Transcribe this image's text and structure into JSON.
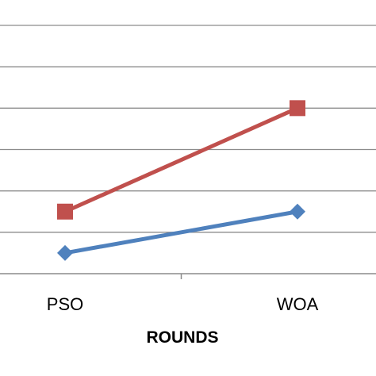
{
  "chart_data": {
    "type": "line",
    "categories": [
      "PSO",
      "WOA"
    ],
    "xlabel": "ROUNDS",
    "ylabel": "",
    "ylim": [
      0,
      6
    ],
    "grid": true,
    "series": [
      {
        "values": [
          1.5,
          4.0
        ],
        "color": "#c0504d",
        "marker": "square"
      },
      {
        "values": [
          0.5,
          1.5
        ],
        "color": "#4f81bd",
        "marker": "diamond"
      }
    ]
  }
}
